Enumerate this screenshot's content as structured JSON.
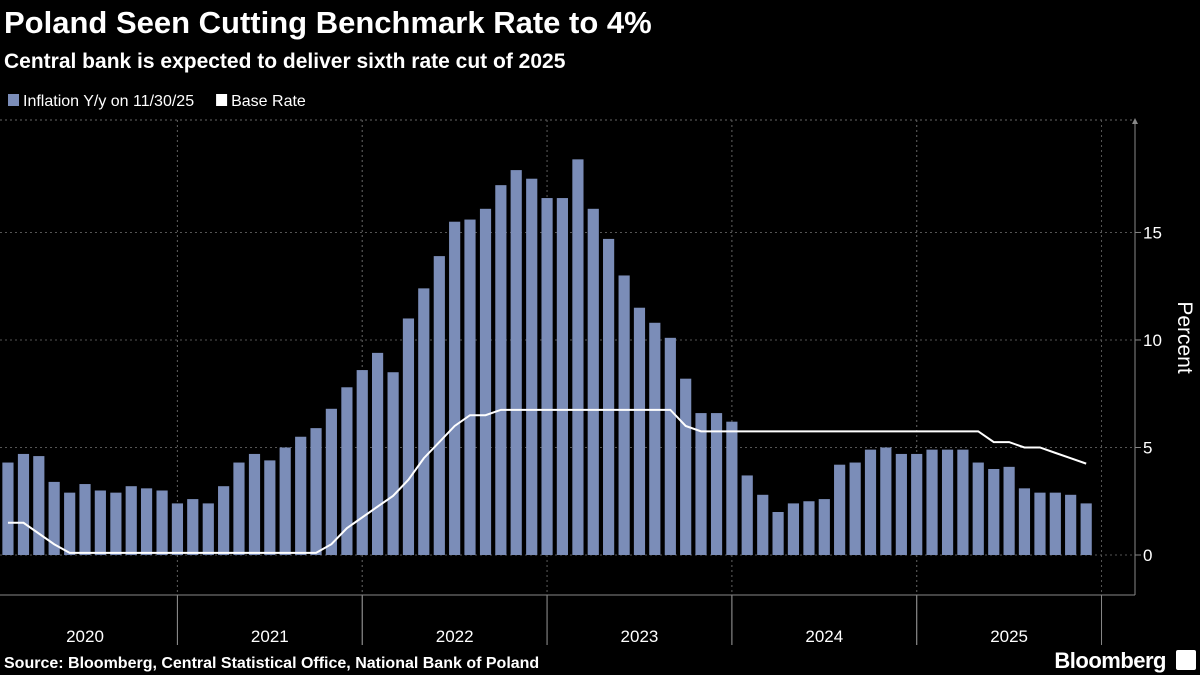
{
  "chart_data": {
    "type": "bar",
    "title": "Poland Seen Cutting Benchmark Rate to 4%",
    "subtitle": "Central bank is expected to deliver sixth rate cut of 2025",
    "y_label": "Percent",
    "source": "Source: Bloomberg, Central Statistical Office, National Bank of Poland",
    "logo": "Bloomberg",
    "x": [
      2020.083,
      2020.167,
      2020.25,
      2020.333,
      2020.417,
      2020.5,
      2020.583,
      2020.667,
      2020.75,
      2020.833,
      2020.917,
      2021,
      2021.083,
      2021.167,
      2021.25,
      2021.333,
      2021.417,
      2021.5,
      2021.583,
      2021.667,
      2021.75,
      2021.833,
      2021.917,
      2022,
      2022.083,
      2022.167,
      2022.25,
      2022.333,
      2022.417,
      2022.5,
      2022.583,
      2022.667,
      2022.75,
      2022.833,
      2022.917,
      2023,
      2023.083,
      2023.167,
      2023.25,
      2023.333,
      2023.417,
      2023.5,
      2023.583,
      2023.667,
      2023.75,
      2023.833,
      2023.917,
      2024,
      2024.083,
      2024.167,
      2024.25,
      2024.333,
      2024.417,
      2024.5,
      2024.583,
      2024.667,
      2024.75,
      2024.833,
      2024.917,
      2025,
      2025.083,
      2025.167,
      2025.25,
      2025.333,
      2025.417,
      2025.5,
      2025.583,
      2025.667,
      2025.75,
      2025.833,
      2025.917
    ],
    "series": [
      {
        "name": "Inflation Y/y on 11/30/25",
        "type": "bar",
        "color": "#7b8db8",
        "values": [
          4.3,
          4.7,
          4.6,
          3.4,
          2.9,
          3.3,
          3.0,
          2.9,
          3.2,
          3.1,
          3.0,
          2.4,
          2.6,
          2.4,
          3.2,
          4.3,
          4.7,
          4.4,
          5.0,
          5.5,
          5.9,
          6.8,
          7.8,
          8.6,
          9.4,
          8.5,
          11.0,
          12.4,
          13.9,
          15.5,
          15.6,
          16.1,
          17.2,
          17.9,
          17.5,
          16.6,
          16.6,
          18.4,
          16.1,
          14.7,
          13.0,
          11.5,
          10.8,
          10.1,
          8.2,
          6.6,
          6.6,
          6.2,
          3.7,
          2.8,
          2.0,
          2.4,
          2.5,
          2.6,
          4.2,
          4.3,
          4.9,
          5.0,
          4.7,
          4.7,
          4.9,
          4.9,
          4.9,
          4.3,
          4.0,
          4.1,
          3.1,
          2.9,
          2.9,
          2.8,
          2.4
        ]
      },
      {
        "name": "Base Rate",
        "type": "line",
        "color": "#ffffff",
        "values": [
          1.5,
          1.5,
          1.0,
          0.5,
          0.1,
          0.1,
          0.1,
          0.1,
          0.1,
          0.1,
          0.1,
          0.1,
          0.1,
          0.1,
          0.1,
          0.1,
          0.1,
          0.1,
          0.1,
          0.1,
          0.1,
          0.5,
          1.25,
          1.75,
          2.25,
          2.75,
          3.5,
          4.5,
          5.25,
          6.0,
          6.5,
          6.5,
          6.75,
          6.75,
          6.75,
          6.75,
          6.75,
          6.75,
          6.75,
          6.75,
          6.75,
          6.75,
          6.75,
          6.75,
          6.0,
          5.75,
          5.75,
          5.75,
          5.75,
          5.75,
          5.75,
          5.75,
          5.75,
          5.75,
          5.75,
          5.75,
          5.75,
          5.75,
          5.75,
          5.75,
          5.75,
          5.75,
          5.75,
          5.75,
          5.25,
          5.25,
          5.0,
          5.0,
          4.75,
          4.5,
          4.25
        ]
      }
    ],
    "xlim": [
      2020.04,
      2026.1
    ],
    "xticks": [
      2020,
      2021,
      2022,
      2023,
      2024,
      2025
    ],
    "ylim": [
      -1.86,
      20.23
    ],
    "yticks": [
      0,
      5,
      10,
      15
    ],
    "grid": true
  }
}
